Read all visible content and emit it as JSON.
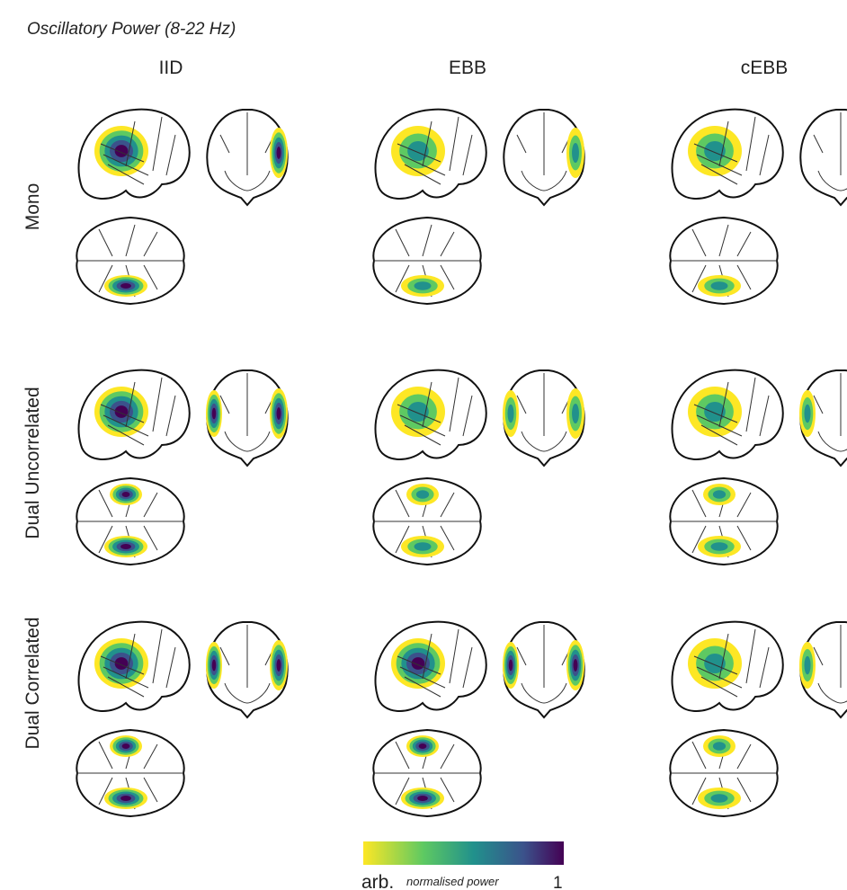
{
  "title": "Oscillatory Power (8-22 Hz)",
  "columns": [
    "IID",
    "EBB",
    "cEBB"
  ],
  "rows": [
    "Mono",
    "Dual Uncorrelated",
    "Dual Correlated"
  ],
  "colorbar": {
    "min_label": "arb.",
    "caption": "normalised power",
    "max_label": "1"
  }
}
